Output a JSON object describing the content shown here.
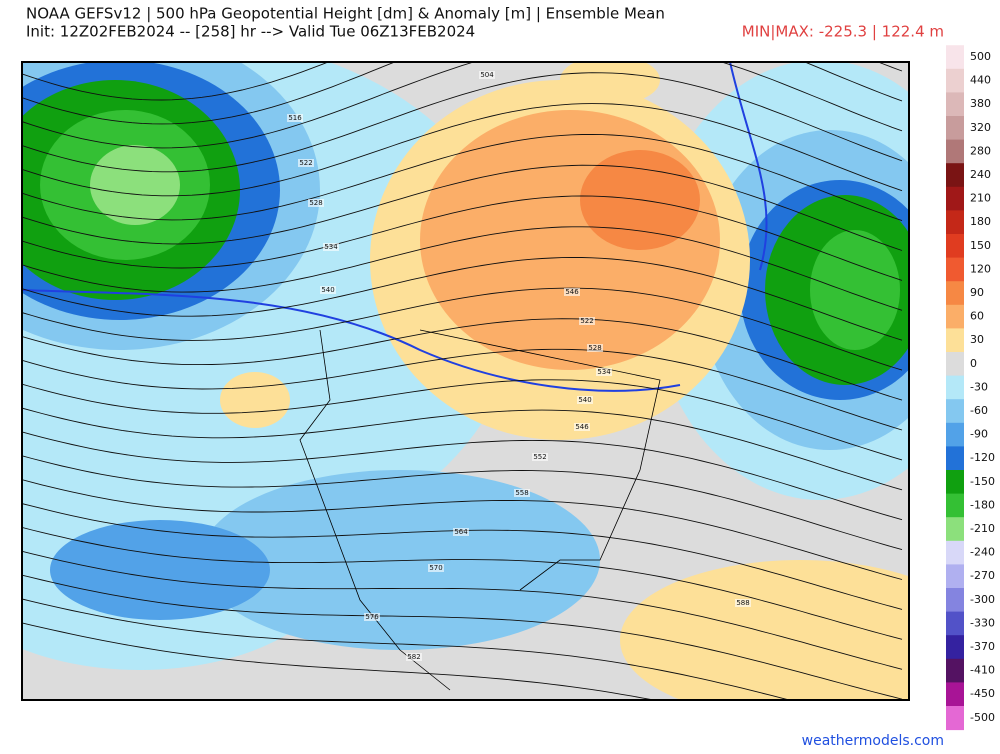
{
  "header": {
    "title": "NOAA GEFSv12 | 500 hPa Geopotential Height [dm] & Anomaly [m] | Ensemble Mean",
    "subtitle": "Init: 12Z02FEB2024 -- [258] hr --> Valid Tue 06Z13FEB2024",
    "minmax": "MIN|MAX: -225.3 | 122.4 m"
  },
  "colorbar": [
    {
      "value": 500,
      "color": "#f8e4ea"
    },
    {
      "value": 440,
      "color": "#ecd0d0"
    },
    {
      "value": 380,
      "color": "#dcb8b8"
    },
    {
      "value": 320,
      "color": "#c89c9c"
    },
    {
      "value": 280,
      "color": "#b07878"
    },
    {
      "value": 240,
      "color": "#7a1414"
    },
    {
      "value": 210,
      "color": "#a01818"
    },
    {
      "value": 180,
      "color": "#c42818"
    },
    {
      "value": 150,
      "color": "#e03c20"
    },
    {
      "value": 120,
      "color": "#f05a30"
    },
    {
      "value": 90,
      "color": "#f68844"
    },
    {
      "value": 60,
      "color": "#fbae68"
    },
    {
      "value": 30,
      "color": "#fde098"
    },
    {
      "value": 0,
      "color": "#dcdcdc"
    },
    {
      "value": -30,
      "color": "#b4e8f8"
    },
    {
      "value": -60,
      "color": "#84c8f0"
    },
    {
      "value": -90,
      "color": "#52a2e8"
    },
    {
      "value": -120,
      "color": "#2272d8"
    },
    {
      "value": -150,
      "color": "#10a010"
    },
    {
      "value": -180,
      "color": "#34c034"
    },
    {
      "value": -210,
      "color": "#8ce07c"
    },
    {
      "value": -240,
      "color": "#d8d8f8"
    },
    {
      "value": -270,
      "color": "#b0b0f0"
    },
    {
      "value": -300,
      "color": "#8484e0"
    },
    {
      "value": -330,
      "color": "#5252c8"
    },
    {
      "value": -370,
      "color": "#3422a0"
    },
    {
      "value": -410,
      "color": "#541262"
    },
    {
      "value": -450,
      "color": "#a81496"
    },
    {
      "value": -500,
      "color": "#e468d4"
    }
  ],
  "contour_labels": [
    504,
    516,
    522,
    528,
    534,
    540,
    546,
    522,
    528,
    534,
    540,
    546,
    552,
    558,
    564,
    570,
    576,
    582,
    588
  ],
  "footer": "weathermodels.com"
}
